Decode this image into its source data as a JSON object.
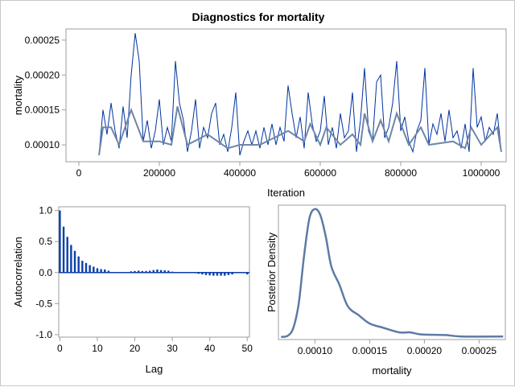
{
  "title": "Diagnostics for mortality",
  "colors": {
    "trace": "#0033a0",
    "smooth": "#6f86a8",
    "acf": "#0b3fa8",
    "density": "#5e7aa6",
    "frame": "#9a9ea3"
  },
  "chart_data": [
    {
      "type": "line",
      "panel": "trace",
      "xlabel": "Iteration",
      "ylabel": "mortality",
      "xlim": [
        -32000,
        1062000
      ],
      "ylim": [
        7.58e-05,
        0.000266
      ],
      "xticks": [
        0,
        200000,
        400000,
        600000,
        800000,
        1000000
      ],
      "xtick_labels": [
        "0",
        "200000",
        "400000",
        "600000",
        "800000",
        "1000000"
      ],
      "yticks": [
        0.0001,
        0.00015,
        0.0002,
        0.00025
      ],
      "ytick_labels": [
        "0.00010",
        "0.00015",
        "0.00020",
        "0.00025"
      ],
      "x_start": 50000,
      "x_step": 10000,
      "values": [
        8.5e-05,
        0.00015,
        0.000115,
        0.00016,
        0.00012,
        9.5e-05,
        0.000155,
        0.00011,
        0.0002,
        0.00026,
        0.00022,
        0.000105,
        0.000135,
        9.5e-05,
        0.00012,
        0.000165,
        0.0001,
        0.000125,
        0.000105,
        0.00022,
        0.00016,
        0.000135,
        9e-05,
        0.00012,
        0.000165,
        9.5e-05,
        0.000125,
        0.00011,
        0.000145,
        0.00016,
        0.0001,
        0.000115,
        9e-05,
        0.000125,
        0.000175,
        8.5e-05,
        0.000105,
        0.00012,
        0.0001,
        0.00012,
        9.5e-05,
        0.000125,
        0.0001,
        0.00013,
        0.0001,
        0.000125,
        0.000105,
        0.000185,
        0.000145,
        0.00011,
        0.00014,
        9.5e-05,
        0.000175,
        0.00013,
        0.000105,
        0.00012,
        0.00017,
        0.0001,
        0.000125,
        9.5e-05,
        0.000145,
        0.00011,
        0.00012,
        0.000175,
        9e-05,
        0.000135,
        0.00021,
        0.00012,
        0.000105,
        0.00019,
        0.0002,
        0.00011,
        0.000125,
        0.00016,
        0.00022,
        0.00012,
        0.00014,
        0.000105,
        9e-05,
        0.00012,
        0.000135,
        0.00021,
        0.0001,
        0.00013,
        0.000115,
        0.000145,
        0.000105,
        0.00015,
        0.00011,
        0.00012,
        9.5e-05,
        0.00013,
        9e-05,
        0.00021,
        0.000125,
        0.00014,
        0.000105,
        0.000125,
        0.000115,
        0.000145,
        9e-05
      ],
      "smooth": {
        "x": [
          50000,
          60000,
          80000,
          100000,
          130000,
          160000,
          200000,
          230000,
          245000,
          270000,
          320000,
          370000,
          400000,
          450000,
          520000,
          560000,
          575000,
          600000,
          615000,
          650000,
          680000,
          700000,
          710000,
          730000,
          750000,
          770000,
          790000,
          820000,
          850000,
          870000,
          930000,
          960000,
          975000,
          1000000,
          1040000,
          1050000
        ],
        "y": [
          8.5e-05,
          0.000125,
          0.000125,
          0.0001,
          0.00015,
          0.000105,
          0.000105,
          0.0001,
          0.000155,
          0.0001,
          0.000115,
          9.5e-05,
          0.0001,
          0.0001,
          0.00012,
          0.000105,
          0.00013,
          0.0001,
          0.000125,
          0.0001,
          0.000115,
          0.0001,
          0.000145,
          0.000105,
          0.000135,
          0.000105,
          0.000145,
          0.0001,
          0.000125,
          0.0001,
          0.000105,
          9.5e-05,
          0.000125,
          0.0001,
          0.000125,
          9e-05
        ]
      }
    },
    {
      "type": "bar",
      "panel": "autocorrelation",
      "xlabel": "Lag",
      "ylabel": "Autocorrelation",
      "xlim": [
        -0.3,
        50.6
      ],
      "ylim": [
        -1.04,
        1.06
      ],
      "xticks": [
        0,
        10,
        20,
        30,
        40,
        50
      ],
      "xtick_labels": [
        "0",
        "10",
        "20",
        "30",
        "40",
        "50"
      ],
      "yticks": [
        1.0,
        0.5,
        0.0,
        -0.5,
        -1.0
      ],
      "ytick_labels": [
        "1.0",
        "0.5",
        "0.0",
        "-0.5",
        "-1.0"
      ],
      "lags": [
        0,
        1,
        2,
        3,
        4,
        5,
        6,
        7,
        8,
        9,
        10,
        11,
        12,
        13,
        14,
        15,
        16,
        17,
        18,
        19,
        20,
        21,
        22,
        23,
        24,
        25,
        26,
        27,
        28,
        29,
        30,
        31,
        32,
        33,
        34,
        35,
        36,
        37,
        38,
        39,
        40,
        41,
        42,
        43,
        44,
        45,
        46,
        47,
        48,
        49,
        50
      ],
      "values": [
        1.0,
        0.74,
        0.575,
        0.445,
        0.35,
        0.26,
        0.19,
        0.155,
        0.12,
        0.095,
        0.07,
        0.055,
        0.05,
        0.03,
        0.01,
        0.0,
        0.0,
        0.01,
        0.01,
        0.02,
        0.025,
        0.03,
        0.025,
        0.025,
        0.03,
        0.04,
        0.05,
        0.04,
        0.035,
        0.03,
        0.015,
        0.0,
        0.0,
        0.0,
        -0.005,
        -0.01,
        -0.01,
        -0.02,
        -0.03,
        -0.04,
        -0.045,
        -0.05,
        -0.05,
        -0.05,
        -0.05,
        -0.04,
        -0.03,
        -0.01,
        -0.01,
        -0.01,
        -0.03
      ]
    },
    {
      "type": "line",
      "panel": "density",
      "xlabel": "mortality",
      "ylabel": "Posterior Density",
      "xlim": [
        6.66e-05,
        0.000274
      ],
      "ylim": [
        -0.02,
        1.03
      ],
      "xticks": [
        0.0001,
        0.00015,
        0.0002,
        0.00025
      ],
      "xtick_labels": [
        "0.00010",
        "0.00015",
        "0.00020",
        "0.00025"
      ],
      "x": [
        6.9e-05,
        7.52e-05,
        8.02e-05,
        8.51e-05,
        9.01e-05,
        9.5e-05,
        0.0001,
        0.000105,
        0.00011,
        0.000115,
        0.0001223,
        0.00013,
        0.00014,
        0.00015,
        0.000162,
        0.000177,
        0.000187,
        0.000197,
        0.000219,
        0.000234,
        0.000272
      ],
      "y": [
        0.0,
        0.01,
        0.07,
        0.26,
        0.64,
        0.93,
        1.0,
        0.95,
        0.78,
        0.55,
        0.41,
        0.24,
        0.17,
        0.105,
        0.073,
        0.036,
        0.036,
        0.02,
        0.015,
        0.004,
        0.004
      ]
    }
  ]
}
